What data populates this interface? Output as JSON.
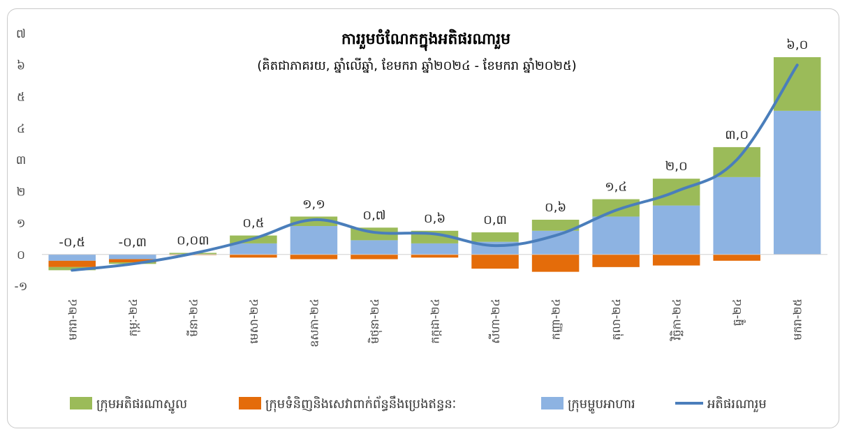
{
  "chart_data": {
    "type": "bar",
    "title": "ការរួមចំណែកក្នុងអតិផរណារួម",
    "subtitle": "(គិតជាភាគរយ, ឆ្នាំលើឆ្នាំ, ខែមករា ឆ្នាំ២០២៤ - ខែមករា ឆ្នាំ២០២៥)",
    "categories": [
      "មករា-២៤",
      "កុម្ភៈ-២៤",
      "មីនា-២៤",
      "មេសា-២៤",
      "ឧសភា-២៤",
      "មិថុនា-២៤",
      "កក្កដា-២៤",
      "សីហា-២៤",
      "កញ្ញា-២៤",
      "តុលា-២៤",
      "វិច្ឆិកា-២៤",
      "ធ្នូ-២៤",
      "មករា-២៥"
    ],
    "ylim": [
      -1,
      7
    ],
    "yticks": [
      -1,
      0,
      1,
      2,
      3,
      4,
      5,
      6,
      7
    ],
    "ytick_labels": [
      "-១",
      "០",
      "១",
      "២",
      "៣",
      "៤",
      "៥",
      "៦",
      "៧"
    ],
    "series": [
      {
        "name": "ក្រុមម្ហូបអាហារ",
        "kind": "bar",
        "color": "#8db3e2",
        "values": [
          -0.2,
          -0.15,
          0.0,
          0.35,
          0.9,
          0.45,
          0.35,
          0.4,
          0.75,
          1.2,
          1.55,
          2.45,
          4.55
        ]
      },
      {
        "name": "ក្រុមទំនិញនិងសេវាពាក់ព័ន្ធនឹងប្រេងឥន្ធនៈ",
        "kind": "bar",
        "color": "#e46c0a",
        "values": [
          -0.2,
          -0.1,
          -0.02,
          -0.1,
          -0.15,
          -0.15,
          -0.1,
          -0.45,
          -0.55,
          -0.4,
          -0.35,
          -0.2,
          0.0
        ]
      },
      {
        "name": "ក្រុមអតិផរណាស្នូល",
        "kind": "bar",
        "color": "#9bbb59",
        "values": [
          -0.1,
          -0.05,
          0.05,
          0.25,
          0.3,
          0.4,
          0.4,
          0.3,
          0.35,
          0.55,
          0.85,
          0.95,
          1.7
        ]
      },
      {
        "name": "អតិផរណារួម",
        "kind": "line",
        "color": "#4a7ebb",
        "values": [
          -0.5,
          -0.3,
          0.03,
          0.5,
          1.1,
          0.7,
          0.65,
          0.28,
          0.6,
          1.4,
          2.0,
          3.0,
          6.0
        ]
      }
    ],
    "data_labels": [
      "-០,៥",
      "-០,៣",
      "០,០៣",
      "០,៥",
      "១,១",
      "០,៧",
      "០,៦",
      "០,៣",
      "០,៦",
      "១,៤",
      "២,០",
      "៣,០",
      "៦,០"
    ],
    "legend": {
      "placement": "bottom",
      "order": [
        "ក្រុមអតិផរណាស្នូល",
        "ក្រុមទំនិញនិងសេវាពាក់ព័ន្ធនឹងប្រេងឥន្ធនៈ",
        "ក្រុមម្ហូបអាហារ",
        "អតិផរណារួម"
      ]
    },
    "grid": false
  }
}
